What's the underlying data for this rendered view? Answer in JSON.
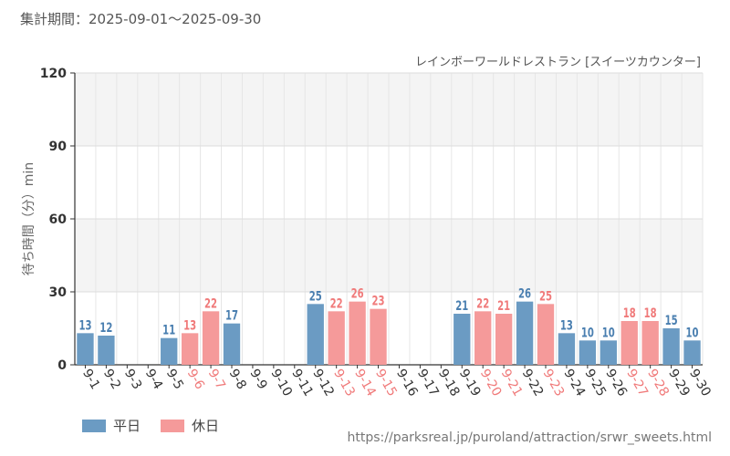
{
  "period_label": "集計期間：2025-09-01～2025-09-30",
  "source_url": "https://parksreal.jp/puroland/attraction/srwr_sweets.html",
  "colors": {
    "weekday": "#6b9bc3",
    "holiday": "#f59a9a",
    "weekday_label": "#4a7fb0",
    "holiday_label": "#f07a7a"
  },
  "chart_data": {
    "type": "bar",
    "title": "レインボーワールドレストラン [スイーツカウンター]",
    "ylabel": "待ち時間（分）min",
    "xlabel": "",
    "ylim": [
      0,
      120
    ],
    "yticks": [
      0,
      30,
      60,
      90,
      120
    ],
    "categories": [
      "9-1",
      "9-2",
      "9-3",
      "9-4",
      "9-5",
      "9-6",
      "9-7",
      "9-8",
      "9-9",
      "9-10",
      "9-11",
      "9-12",
      "9-13",
      "9-14",
      "9-15",
      "9-16",
      "9-17",
      "9-18",
      "9-19",
      "9-20",
      "9-21",
      "9-22",
      "9-23",
      "9-24",
      "9-25",
      "9-26",
      "9-27",
      "9-28",
      "9-29",
      "9-30"
    ],
    "values": [
      13,
      12,
      null,
      null,
      11,
      13,
      22,
      17,
      null,
      null,
      null,
      25,
      22,
      26,
      23,
      null,
      null,
      null,
      21,
      22,
      21,
      26,
      25,
      13,
      10,
      10,
      18,
      18,
      15,
      10
    ],
    "day_types": [
      "weekday",
      "weekday",
      "weekday",
      "weekday",
      "weekday",
      "holiday",
      "holiday",
      "weekday",
      "weekday",
      "weekday",
      "weekday",
      "weekday",
      "holiday",
      "holiday",
      "holiday",
      "weekday",
      "weekday",
      "weekday",
      "weekday",
      "holiday",
      "holiday",
      "weekday",
      "holiday",
      "weekday",
      "weekday",
      "weekday",
      "holiday",
      "holiday",
      "weekday",
      "weekday"
    ],
    "legend": [
      {
        "key": "weekday",
        "label": "平日"
      },
      {
        "key": "holiday",
        "label": "休日"
      }
    ]
  }
}
